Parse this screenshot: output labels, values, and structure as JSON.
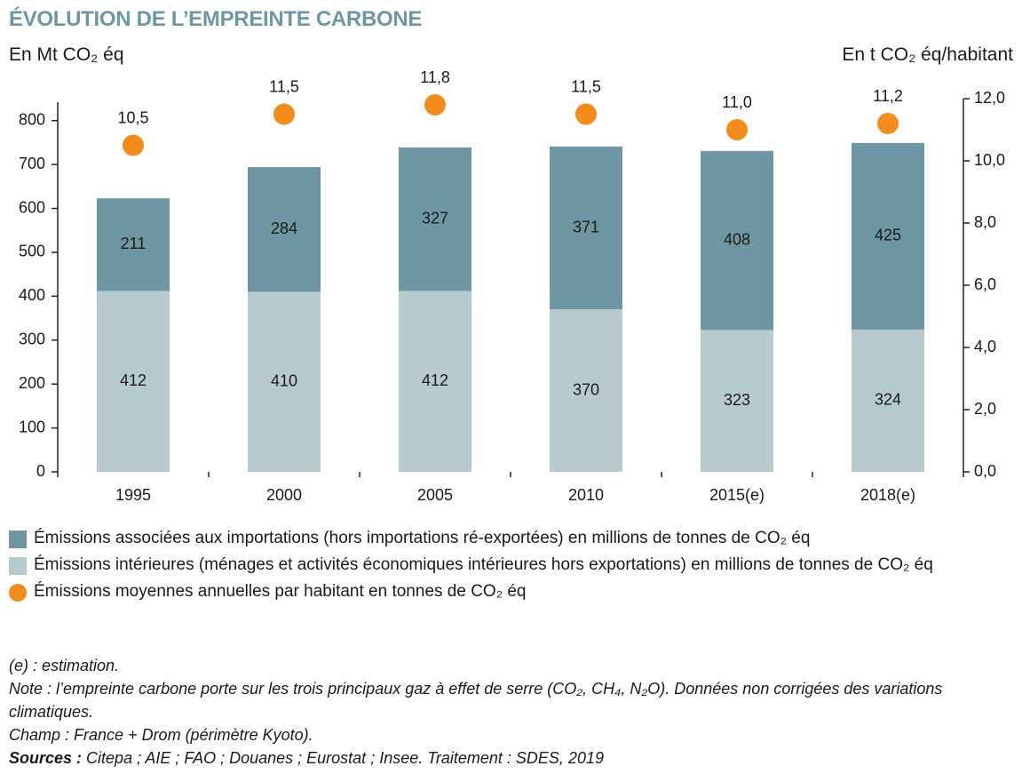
{
  "chart_data": {
    "type": "bar",
    "title": "ÉVOLUTION DE L’EMPREINTE CARBONE",
    "y_label": "En Mt CO₂ éq",
    "y2_label": "En t CO₂ éq/habitant",
    "categories": [
      "1995",
      "2000",
      "2005",
      "2010",
      "2015(e)",
      "2018(e)"
    ],
    "series": [
      {
        "name": "Émissions associées aux importations (hors importations ré-exportées) en millions de tonnes de CO₂ éq",
        "color": "#6f97a3",
        "values": [
          211,
          284,
          327,
          371,
          408,
          425
        ]
      },
      {
        "name": "Émissions intérieures (ménages et activités économiques intérieures hors exportations) en millions de tonnes de CO₂ éq",
        "color": "#b7cace",
        "values": [
          412,
          410,
          412,
          370,
          323,
          324
        ]
      },
      {
        "name": "Émissions moyennes annuelles par habitant en tonnes de CO₂ éq",
        "color": "#f28c1c",
        "type": "scatter",
        "axis": "y2",
        "values": [
          10.5,
          11.5,
          11.8,
          11.5,
          11.0,
          11.2
        ],
        "value_labels": [
          "10,5",
          "11,5",
          "11,8",
          "11,5",
          "11,0",
          "11,2"
        ]
      }
    ],
    "ylim": [
      0,
      850
    ],
    "yticks": [
      0,
      100,
      200,
      300,
      400,
      500,
      600,
      700,
      800
    ],
    "y2lim": [
      0,
      12
    ],
    "y2ticks": [
      {
        "value": 0,
        "label": "0,0"
      },
      {
        "value": 2,
        "label": "2,0"
      },
      {
        "value": 4,
        "label": "4,0"
      },
      {
        "value": 6,
        "label": "6,0"
      },
      {
        "value": 8,
        "label": "8,0"
      },
      {
        "value": 10,
        "label": "10,0"
      },
      {
        "value": 12,
        "label": "12,0"
      }
    ],
    "notes": [
      "(e) : estimation.",
      "Note : l’empreinte carbone porte sur les trois principaux gaz à effet de serre (CO₂, CH₄, N₂O). Données non corrigées des variations climatiques.",
      "Champ : France + Drom (périmètre Kyoto)."
    ],
    "sources": {
      "label": "Sources :",
      "text": "Citepa ; AIE ; FAO ; Douanes ; Eurostat ; Insee. Traitement : SDES, 2019"
    }
  }
}
